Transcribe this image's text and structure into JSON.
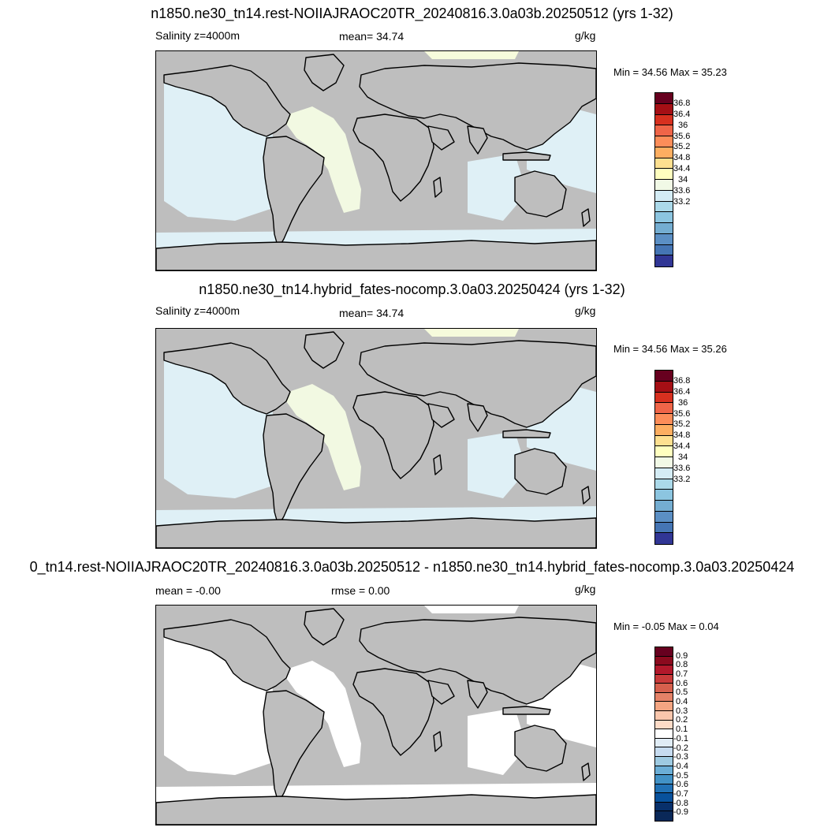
{
  "panels": [
    {
      "title": "n1850.ne30_tn14.rest-NOIIAJRAOC20TR_20240816.3.0a03b.20250512 (yrs 1-32)",
      "left_label": "Salinity z=4000m",
      "center_label": "mean=  34.74",
      "units": "g/kg",
      "minmax": "Min =  34.56 Max =  35.23"
    },
    {
      "title": "n1850.ne30_tn14.hybrid_fates-nocomp.3.0a03.20250424 (yrs 1-32)",
      "left_label": "Salinity z=4000m",
      "center_label": "mean=  34.74",
      "units": "g/kg",
      "minmax": "Min =  34.56 Max =  35.26"
    },
    {
      "title": "0_tn14.rest-NOIIAJRAOC20TR_20240816.3.0a03b.20250512 - n1850.ne30_tn14.hybrid_fates-nocomp.3.0a03.20250424",
      "left_label": "mean =  -0.00",
      "center_label": "rmse =   0.00",
      "units": "g/kg",
      "minmax": "Min =  -0.05 Max =   0.04"
    }
  ],
  "chart_data": [
    {
      "type": "heatmap",
      "title": "n1850.ne30_tn14.rest-NOIIAJRAOC20TR_20240816.3.0a03b.20250512 (yrs 1-32)",
      "variable": "Salinity z=4000m",
      "mean": 34.74,
      "units": "g/kg",
      "min": 34.56,
      "max": 35.23,
      "colorbar_ticks": [
        "36.8",
        "36.4",
        "36",
        "35.6",
        "35.2",
        "34.8",
        "34.4",
        "34",
        "33.6",
        "33.2"
      ],
      "colorbar_colors": [
        "#67001f",
        "#a50f15",
        "#d7301f",
        "#ef6548",
        "#fc8d59",
        "#fdae61",
        "#fee090",
        "#ffffbf",
        "#f1f9e6",
        "#d4ecf5",
        "#abd9e9",
        "#8cc5e0",
        "#74add1",
        "#5b8fc4",
        "#4575b4",
        "#313695"
      ],
      "colors": {
        "land": "#bebebe",
        "deep_ocean": "#dff0f6",
        "atlantic_basin": "#f2f9e2",
        "arctic_strip": "#f6fbdc"
      }
    },
    {
      "type": "heatmap",
      "title": "n1850.ne30_tn14.hybrid_fates-nocomp.3.0a03.20250424 (yrs 1-32)",
      "variable": "Salinity z=4000m",
      "mean": 34.74,
      "units": "g/kg",
      "min": 34.56,
      "max": 35.26,
      "colorbar_ticks": [
        "36.8",
        "36.4",
        "36",
        "35.6",
        "35.2",
        "34.8",
        "34.4",
        "34",
        "33.6",
        "33.2"
      ],
      "colorbar_colors": [
        "#67001f",
        "#a50f15",
        "#d7301f",
        "#ef6548",
        "#fc8d59",
        "#fdae61",
        "#fee090",
        "#ffffbf",
        "#f1f9e6",
        "#d4ecf5",
        "#abd9e9",
        "#8cc5e0",
        "#74add1",
        "#5b8fc4",
        "#4575b4",
        "#313695"
      ],
      "colors": {
        "land": "#bebebe",
        "deep_ocean": "#dff0f6",
        "atlantic_basin": "#f2f9e2",
        "arctic_strip": "#f6fbdc"
      }
    },
    {
      "type": "heatmap",
      "title": "0_tn14.rest-NOIIAJRAOC20TR_20240816.3.0a03b.20250512 - n1850.ne30_tn14.hybrid_fates-nocomp.3.0a03.20250424",
      "mean": -0.0,
      "rmse": 0.0,
      "units": "g/kg",
      "min": -0.05,
      "max": 0.04,
      "colorbar_ticks": [
        "0.9",
        "0.8",
        "0.7",
        "0.6",
        "0.5",
        "0.4",
        "0.3",
        "0.2",
        "0.1",
        "-0.1",
        "-0.2",
        "-0.3",
        "-0.4",
        "-0.5",
        "-0.6",
        "-0.7",
        "-0.8",
        "-0.9"
      ],
      "colorbar_colors": [
        "#67001f",
        "#8b0a1e",
        "#b2182b",
        "#c93a3a",
        "#d6604d",
        "#e58267",
        "#f4a582",
        "#f9c6ac",
        "#fddbc7",
        "#ffffff",
        "#e0ecf5",
        "#c6dbef",
        "#9ecae1",
        "#6baed6",
        "#4292c6",
        "#2171b5",
        "#08519c",
        "#08306b",
        "#0a2858"
      ],
      "colors": {
        "land": "#bebebe",
        "deep_ocean": "#ffffff",
        "atlantic_basin": "#ffffff",
        "arctic_strip": "#ffffff"
      }
    }
  ]
}
